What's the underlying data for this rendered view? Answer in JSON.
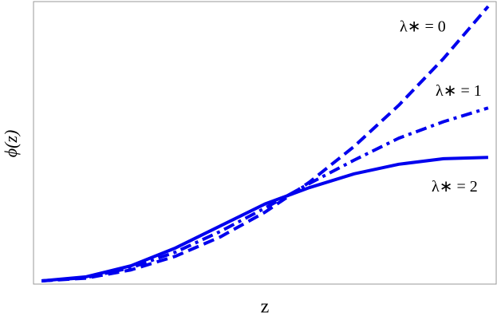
{
  "chart_data": {
    "type": "line",
    "xlabel": "z",
    "ylabel": "ϕ(z)",
    "x": [
      0,
      0.1,
      0.2,
      0.3,
      0.4,
      0.5,
      0.6,
      0.7,
      0.8,
      0.9,
      1.0
    ],
    "series": [
      {
        "name": "λ∗ = 0",
        "color": "#0000ee",
        "dash": "dashed",
        "values": [
          0,
          0.01,
          0.04,
          0.09,
          0.16,
          0.25,
          0.36,
          0.49,
          0.64,
          0.81,
          1.0
        ]
      },
      {
        "name": "λ∗ = 1",
        "color": "#0000ee",
        "dash": "dashdot",
        "values": [
          0,
          0.012,
          0.048,
          0.105,
          0.18,
          0.265,
          0.355,
          0.44,
          0.52,
          0.58,
          0.63
        ]
      },
      {
        "name": "λ∗ = 2",
        "color": "#0000ee",
        "dash": "solid",
        "values": [
          0,
          0.015,
          0.055,
          0.12,
          0.2,
          0.28,
          0.34,
          0.39,
          0.425,
          0.445,
          0.45
        ]
      }
    ],
    "xlim": [
      -0.018,
      1.018
    ],
    "ylim": [
      -0.0116,
      1.0174
    ],
    "grid": false
  }
}
